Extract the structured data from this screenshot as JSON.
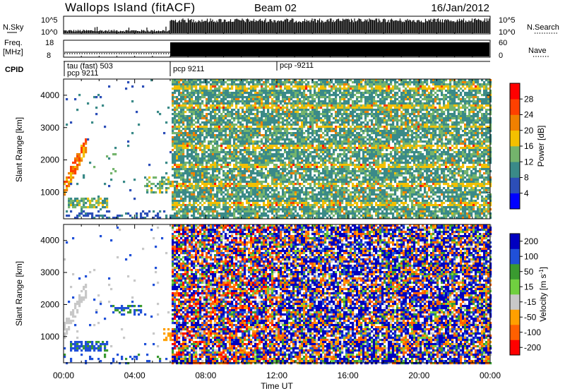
{
  "header": {
    "station": "Wallops Island (fitACF)",
    "beam": "Beam 02",
    "date": "16/Jan/2012"
  },
  "panels": {
    "nsky": {
      "label": "N.Sky",
      "left_ticks": [
        "10^5",
        "10^0"
      ],
      "right_ticks": [
        "10^5",
        "10^0"
      ],
      "right_label": "N.Search"
    },
    "freq": {
      "label_line1": "Freq.",
      "label_line2": "[MHz]",
      "left_ticks": [
        "18",
        "8"
      ],
      "right_ticks": [
        "60",
        "0"
      ],
      "right_label": "Nave"
    },
    "cpid": {
      "label": "CPID",
      "entries": [
        {
          "text": "tau (fast) 503",
          "start_hour": 0
        },
        {
          "text": "pcp 9211",
          "start_hour": 0
        },
        {
          "text": "pcp 9211",
          "start_hour": 6
        },
        {
          "text": "pcp -9211",
          "start_hour": 12
        }
      ]
    }
  },
  "colors": {
    "power_scale": [
      "#0000ff",
      "#2c4eb8",
      "#3a8a88",
      "#74b46c",
      "#f3c000",
      "#f08000",
      "#ff4000",
      "#ff0000"
    ],
    "velocity_scale": [
      "#ff0000",
      "#ff6000",
      "#ffa000",
      "#c8c8c8",
      "#70d040",
      "#3a9a30",
      "#2050d8",
      "#0000c0"
    ],
    "ground_scatter": "#c8c8c8"
  },
  "chart_data": [
    {
      "type": "heatmap",
      "title": "",
      "xlabel": "Time UT",
      "ylabel": "Slant Range [km]",
      "colorbar_label": "Power [dB]",
      "colorbar_ticks": [
        "28",
        "24",
        "20",
        "16",
        "12",
        "8",
        "4"
      ],
      "x_ticks": [
        "00:00",
        "04:00",
        "08:00",
        "12:00",
        "16:00",
        "20:00",
        "00:00"
      ],
      "y_ticks": [
        "1000",
        "2000",
        "3000",
        "4000"
      ],
      "xlim_hours": [
        0,
        24
      ],
      "ylim_km": [
        180,
        4500
      ],
      "value_range": [
        0,
        30
      ],
      "features": [
        {
          "hours": [
            0,
            6
          ],
          "range_km": [
            180,
            500
          ],
          "kind": "sparse echoes",
          "power_db": 6
        },
        {
          "hours": [
            0.2,
            2.4
          ],
          "range_km": [
            550,
            900
          ],
          "kind": "band",
          "power_db": 14
        },
        {
          "hours": [
            0,
            1.2
          ],
          "range_km": [
            1200,
            2600
          ],
          "kind": "arc",
          "power_db": 24
        },
        {
          "hours": [
            4.5,
            6
          ],
          "range_km": [
            1000,
            1500
          ],
          "kind": "patch",
          "power_db": 14
        },
        {
          "hours": [
            6,
            24
          ],
          "range_km": [
            180,
            4500
          ],
          "kind": "dense noisy echoes",
          "power_db": 10
        }
      ]
    },
    {
      "type": "heatmap",
      "title": "",
      "xlabel": "Time UT",
      "ylabel": "Slant Range [km]",
      "colorbar_label": "Velocity [m s^-1]",
      "colorbar_ticks": [
        "200",
        "100",
        "50",
        "15",
        "-15",
        "-50",
        "-100",
        "-200"
      ],
      "x_ticks": [
        "00:00",
        "04:00",
        "08:00",
        "12:00",
        "16:00",
        "20:00",
        "00:00"
      ],
      "y_ticks": [
        "1000",
        "2000",
        "3000",
        "4000"
      ],
      "xlim_hours": [
        0,
        24
      ],
      "ylim_km": [
        180,
        4500
      ],
      "value_range": [
        -250,
        250
      ],
      "features": [
        {
          "hours": [
            0.3,
            2.5
          ],
          "range_km": [
            550,
            900
          ],
          "kind": "band",
          "velocity": 60
        },
        {
          "hours": [
            0,
            1.2
          ],
          "range_km": [
            1200,
            2600
          ],
          "kind": "ground scatter",
          "velocity": 0
        },
        {
          "hours": [
            2.5,
            4.5
          ],
          "range_km": [
            1700,
            2000
          ],
          "kind": "patch",
          "velocity": 60
        },
        {
          "hours": [
            5.5,
            6
          ],
          "range_km": [
            900,
            1300
          ],
          "kind": "patch",
          "velocity": -70
        },
        {
          "hours": [
            6,
            24
          ],
          "range_km": [
            180,
            4500
          ],
          "kind": "mixed noisy echoes",
          "velocity": 0
        }
      ]
    }
  ]
}
